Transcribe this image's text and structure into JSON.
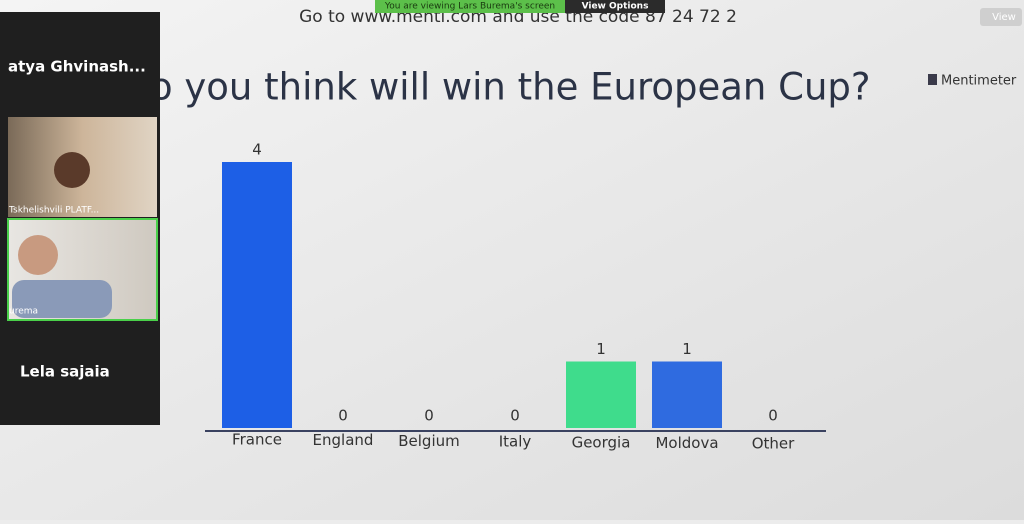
{
  "zoom": {
    "banner": "You are viewing Lars Burema's screen",
    "view_options": "View Options",
    "view_button": "View",
    "participants": [
      "atya  Ghvinash...",
      "Tskhelishvili PLATF...",
      "urema",
      "Lela sajaia"
    ]
  },
  "slide": {
    "instruction": "Go to www.menti.com and use the code 87 24 72 2",
    "brand": "Mentimeter"
  },
  "chart_data": {
    "type": "bar",
    "title": "o you think will win the European Cup?",
    "categories": [
      "France",
      "England",
      "Belgium",
      "Italy",
      "Georgia",
      "Moldova",
      "Other"
    ],
    "values": [
      4,
      0,
      0,
      0,
      1,
      1,
      0
    ],
    "colors": [
      "#1d5fe6",
      "#1d5fe6",
      "#1d5fe6",
      "#1d5fe6",
      "#3fdc8c",
      "#2f6be0",
      "#1d5fe6"
    ]
  }
}
